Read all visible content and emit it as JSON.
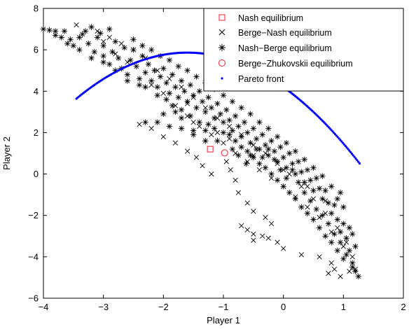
{
  "chart_data": {
    "type": "scatter",
    "xlabel": "Player 1",
    "ylabel": "Player 2",
    "xlim": [
      -4,
      2
    ],
    "ylim": [
      -6,
      8
    ],
    "x_ticks": [
      -4,
      -3,
      -2,
      -1,
      0,
      1,
      2
    ],
    "y_ticks": [
      -6,
      -4,
      -2,
      0,
      2,
      4,
      6,
      8
    ],
    "x_tick_labels": [
      "−4",
      "−3",
      "−2",
      "−1",
      "0",
      "1",
      "2"
    ],
    "y_tick_labels": [
      "−6",
      "−4",
      "−2",
      "0",
      "2",
      "4",
      "6",
      "8"
    ],
    "grid": false,
    "legend_position": "top-right",
    "series": [
      {
        "name": "Nash equilibrium",
        "marker": "square",
        "color": "#e8212f",
        "points": [
          [
            -1.22,
            1.2
          ]
        ]
      },
      {
        "name": "Berge−Nash equilibrium",
        "marker": "x",
        "color": "#000000",
        "points": [
          [
            -3.45,
            7.2
          ],
          [
            -3.1,
            6.9
          ],
          [
            -2.7,
            6.3
          ],
          [
            -2.5,
            6.0
          ],
          [
            -2.3,
            5.6
          ],
          [
            -2.1,
            5.0
          ],
          [
            -1.9,
            4.6
          ],
          [
            -1.7,
            4.2
          ],
          [
            -1.5,
            3.7
          ],
          [
            -1.3,
            3.2
          ],
          [
            -1.1,
            2.7
          ],
          [
            -0.9,
            2.3
          ],
          [
            -0.7,
            1.9
          ],
          [
            -0.5,
            1.4
          ],
          [
            -0.3,
            1.0
          ],
          [
            -0.1,
            0.5
          ],
          [
            0.1,
            0.0
          ],
          [
            0.3,
            -0.6
          ],
          [
            0.5,
            -1.2
          ],
          [
            0.7,
            -1.9
          ],
          [
            0.9,
            -2.6
          ],
          [
            1.05,
            -3.3
          ],
          [
            1.15,
            -4.0
          ],
          [
            1.2,
            -4.6
          ],
          [
            -2.2,
            4.3
          ],
          [
            -2.0,
            3.9
          ],
          [
            -1.8,
            3.3
          ],
          [
            -1.6,
            2.8
          ],
          [
            -1.4,
            2.3
          ],
          [
            -1.2,
            1.9
          ],
          [
            -1.0,
            1.5
          ],
          [
            -0.8,
            1.0
          ],
          [
            -0.6,
            0.6
          ],
          [
            -0.4,
            0.2
          ],
          [
            -0.2,
            -0.2
          ],
          [
            0.0,
            -0.6
          ],
          [
            0.2,
            -1.1
          ],
          [
            0.4,
            -1.6
          ],
          [
            0.6,
            -2.1
          ],
          [
            0.8,
            -2.8
          ],
          [
            1.0,
            -3.5
          ],
          [
            -2.4,
            2.4
          ],
          [
            -2.2,
            2.2
          ],
          [
            -2.0,
            1.8
          ],
          [
            -1.8,
            1.5
          ],
          [
            -1.6,
            1.1
          ],
          [
            -1.45,
            0.8
          ],
          [
            -1.35,
            0.4
          ],
          [
            -1.2,
            0.0
          ],
          [
            -0.95,
            0.6
          ],
          [
            -0.88,
            0.2
          ],
          [
            -0.8,
            -0.3
          ],
          [
            -0.75,
            -0.9
          ],
          [
            -0.6,
            -1.4
          ],
          [
            -0.5,
            -1.8
          ],
          [
            -0.3,
            -2.1
          ],
          [
            -0.2,
            -2.4
          ],
          [
            -0.7,
            -2.5
          ],
          [
            -0.6,
            -2.7
          ],
          [
            -0.5,
            -2.9
          ],
          [
            -0.35,
            -3.0
          ],
          [
            -0.25,
            -3.1
          ],
          [
            -0.1,
            -3.3
          ],
          [
            0.0,
            -3.6
          ],
          [
            0.3,
            -3.9
          ],
          [
            0.6,
            -4.0
          ],
          [
            0.8,
            -4.3
          ],
          [
            0.85,
            -4.6
          ],
          [
            0.75,
            -4.8
          ],
          [
            0.95,
            -4.95
          ],
          [
            1.1,
            -4.7
          ],
          [
            -0.5,
            -3.2
          ],
          [
            -1.6,
            3.4
          ],
          [
            -1.1,
            2.0
          ],
          [
            -0.9,
            1.7
          ],
          [
            -0.5,
            0.9
          ],
          [
            0.0,
            0.2
          ],
          [
            0.4,
            -0.6
          ],
          [
            0.7,
            -1.3
          ],
          [
            -1.5,
            2.5
          ],
          [
            -2.8,
            5.8
          ],
          [
            -2.6,
            5.4
          ],
          [
            -3.0,
            6.4
          ],
          [
            -2.9,
            6.6
          ]
        ]
      },
      {
        "name": "Nash−Berge equilibrium",
        "marker": "asterisk",
        "color": "#000000",
        "points": [
          [
            -4.0,
            7.0
          ],
          [
            -3.9,
            6.95
          ],
          [
            -3.8,
            6.9
          ],
          [
            -3.7,
            6.6
          ],
          [
            -3.65,
            6.9
          ],
          [
            -3.55,
            6.5
          ],
          [
            -3.5,
            6.2
          ],
          [
            -3.4,
            6.6
          ],
          [
            -3.3,
            6.9
          ],
          [
            -3.25,
            6.3
          ],
          [
            -3.15,
            5.9
          ],
          [
            -3.1,
            6.6
          ],
          [
            -3.0,
            6.2
          ],
          [
            -3.0,
            5.7
          ],
          [
            -2.9,
            5.3
          ],
          [
            -2.85,
            5.9
          ],
          [
            -2.8,
            6.4
          ],
          [
            -2.75,
            5.6
          ],
          [
            -2.7,
            5.1
          ],
          [
            -2.6,
            4.8
          ],
          [
            -2.55,
            5.5
          ],
          [
            -2.5,
            6.0
          ],
          [
            -2.45,
            5.2
          ],
          [
            -2.4,
            4.6
          ],
          [
            -2.35,
            5.7
          ],
          [
            -2.3,
            4.9
          ],
          [
            -2.25,
            5.3
          ],
          [
            -2.2,
            4.5
          ],
          [
            -2.15,
            5.0
          ],
          [
            -2.1,
            4.2
          ],
          [
            -2.05,
            4.7
          ],
          [
            -2.0,
            5.1
          ],
          [
            -1.95,
            4.4
          ],
          [
            -1.9,
            3.9
          ],
          [
            -1.85,
            4.8
          ],
          [
            -1.8,
            4.2
          ],
          [
            -1.75,
            3.7
          ],
          [
            -1.7,
            4.5
          ],
          [
            -1.65,
            4.0
          ],
          [
            -1.6,
            3.5
          ],
          [
            -1.55,
            4.3
          ],
          [
            -1.5,
            3.8
          ],
          [
            -1.45,
            3.2
          ],
          [
            -1.4,
            4.0
          ],
          [
            -1.35,
            3.5
          ],
          [
            -1.3,
            3.0
          ],
          [
            -1.25,
            3.7
          ],
          [
            -1.2,
            3.2
          ],
          [
            -1.15,
            2.7
          ],
          [
            -1.1,
            3.4
          ],
          [
            -1.05,
            2.9
          ],
          [
            -1.0,
            2.5
          ],
          [
            -0.95,
            3.1
          ],
          [
            -0.9,
            2.6
          ],
          [
            -0.85,
            2.1
          ],
          [
            -0.8,
            2.8
          ],
          [
            -0.75,
            2.3
          ],
          [
            -0.7,
            1.8
          ],
          [
            -0.65,
            2.5
          ],
          [
            -0.6,
            2.0
          ],
          [
            -0.55,
            1.5
          ],
          [
            -0.5,
            2.2
          ],
          [
            -0.45,
            1.7
          ],
          [
            -0.4,
            1.2
          ],
          [
            -0.35,
            1.9
          ],
          [
            -0.3,
            1.4
          ],
          [
            -0.25,
            0.9
          ],
          [
            -0.2,
            1.6
          ],
          [
            -0.15,
            1.1
          ],
          [
            -0.1,
            0.6
          ],
          [
            -0.05,
            1.3
          ],
          [
            0.0,
            0.8
          ],
          [
            0.05,
            0.3
          ],
          [
            0.1,
            1.0
          ],
          [
            0.15,
            0.5
          ],
          [
            0.2,
            0.0
          ],
          [
            0.25,
            0.6
          ],
          [
            0.3,
            0.1
          ],
          [
            0.35,
            -0.4
          ],
          [
            0.4,
            0.2
          ],
          [
            0.45,
            -0.3
          ],
          [
            0.5,
            -0.8
          ],
          [
            0.55,
            -0.2
          ],
          [
            0.6,
            -0.7
          ],
          [
            0.65,
            -1.2
          ],
          [
            0.7,
            -0.8
          ],
          [
            0.75,
            -1.4
          ],
          [
            0.8,
            -1.9
          ],
          [
            0.85,
            -1.5
          ],
          [
            0.9,
            -2.2
          ],
          [
            0.95,
            -2.8
          ],
          [
            1.0,
            -2.4
          ],
          [
            1.05,
            -3.1
          ],
          [
            1.1,
            -3.7
          ],
          [
            1.15,
            -4.3
          ],
          [
            1.2,
            -4.7
          ],
          [
            1.25,
            -4.95
          ],
          [
            -2.9,
            7.0
          ],
          [
            -3.2,
            7.1
          ],
          [
            -2.5,
            6.5
          ],
          [
            -2.2,
            6.0
          ],
          [
            -1.9,
            5.5
          ],
          [
            -1.6,
            5.0
          ],
          [
            -1.3,
            4.4
          ],
          [
            -1.0,
            3.8
          ],
          [
            -0.7,
            3.2
          ],
          [
            -0.4,
            2.5
          ],
          [
            -0.1,
            1.8
          ],
          [
            0.2,
            1.1
          ],
          [
            0.5,
            0.3
          ],
          [
            0.8,
            -0.6
          ],
          [
            1.0,
            -1.6
          ],
          [
            1.15,
            -2.9
          ],
          [
            -2.3,
            4.2
          ],
          [
            -2.1,
            3.8
          ],
          [
            -1.95,
            3.6
          ],
          [
            -1.85,
            3.3
          ],
          [
            -1.7,
            3.1
          ],
          [
            -1.55,
            2.8
          ],
          [
            -1.4,
            2.5
          ],
          [
            -1.25,
            2.4
          ],
          [
            -1.15,
            2.2
          ],
          [
            -1.0,
            2.0
          ],
          [
            -0.9,
            1.9
          ],
          [
            -0.8,
            1.6
          ],
          [
            -0.7,
            1.3
          ],
          [
            -0.6,
            1.1
          ],
          [
            -0.5,
            0.8
          ],
          [
            -0.4,
            0.5
          ],
          [
            -0.3,
            0.3
          ],
          [
            -0.2,
            0.0
          ],
          [
            -0.1,
            -0.3
          ],
          [
            0.0,
            -0.6
          ],
          [
            0.1,
            -0.9
          ],
          [
            0.2,
            -1.2
          ],
          [
            0.3,
            -1.6
          ],
          [
            0.4,
            -1.9
          ],
          [
            0.5,
            -2.2
          ],
          [
            0.6,
            -2.6
          ],
          [
            0.7,
            -3.0
          ],
          [
            0.8,
            -3.3
          ],
          [
            0.9,
            -3.7
          ],
          [
            1.0,
            -4.1
          ],
          [
            -0.85,
            1.2
          ],
          [
            -0.75,
            0.9
          ],
          [
            -0.62,
            0.5
          ],
          [
            -0.55,
            0.9
          ],
          [
            -0.45,
            1.2
          ],
          [
            -0.35,
            0.8
          ],
          [
            -0.25,
            1.2
          ],
          [
            -0.15,
            0.7
          ],
          [
            -0.05,
            0.2
          ],
          [
            0.05,
            -0.2
          ],
          [
            0.15,
            0.2
          ],
          [
            0.25,
            -0.4
          ],
          [
            0.35,
            -0.9
          ],
          [
            0.45,
            -1.3
          ],
          [
            0.55,
            -1.7
          ],
          [
            0.65,
            -2.0
          ],
          [
            0.75,
            -2.4
          ],
          [
            0.85,
            -2.9
          ],
          [
            0.95,
            -3.3
          ],
          [
            1.05,
            -3.9
          ],
          [
            1.15,
            -4.5
          ],
          [
            1.2,
            -3.5
          ],
          [
            1.1,
            -2.6
          ],
          [
            0.9,
            -1.2
          ],
          [
            -2.3,
            2.5
          ],
          [
            -2.1,
            2.5
          ],
          [
            -1.9,
            2.3
          ],
          [
            -1.7,
            2.2
          ],
          [
            -1.5,
            1.9
          ],
          [
            -1.3,
            1.6
          ],
          [
            -1.7,
            2.7
          ],
          [
            -1.5,
            2.1
          ],
          [
            -1.3,
            2.1
          ],
          [
            -1.1,
            1.6
          ],
          [
            -2.0,
            2.9
          ],
          [
            -1.8,
            3.0
          ],
          [
            -3.8,
            6.7
          ],
          [
            -3.6,
            6.3
          ],
          [
            -3.4,
            6.0
          ],
          [
            -3.2,
            5.6
          ],
          [
            -3.0,
            5.4
          ],
          [
            -2.8,
            5.0
          ],
          [
            -2.6,
            4.5
          ],
          [
            -2.4,
            4.3
          ],
          [
            -3.35,
            6.75
          ],
          [
            -3.05,
            6.8
          ],
          [
            -2.65,
            6.1
          ],
          [
            -2.35,
            6.2
          ],
          [
            -2.05,
            5.7
          ],
          [
            -1.75,
            5.2
          ],
          [
            -1.45,
            4.7
          ],
          [
            -1.15,
            4.1
          ],
          [
            -0.85,
            3.5
          ],
          [
            -0.55,
            2.9
          ],
          [
            -0.25,
            2.2
          ],
          [
            0.05,
            1.5
          ],
          [
            0.35,
            0.7
          ],
          [
            0.65,
            -0.1
          ],
          [
            0.95,
            -0.9
          ]
        ]
      },
      {
        "name": "Berge−Zhukovskii equilibrium",
        "marker": "circle",
        "color": "#e8212f",
        "points": [
          [
            -0.98,
            1.02
          ]
        ]
      },
      {
        "name": "Pareto front",
        "marker": "dot",
        "color": "#0000ff",
        "curve": {
          "x_start": -3.45,
          "x_end": 1.27,
          "poly": [
            4.2,
            -2.08,
            -0.65
          ]
        }
      }
    ]
  }
}
